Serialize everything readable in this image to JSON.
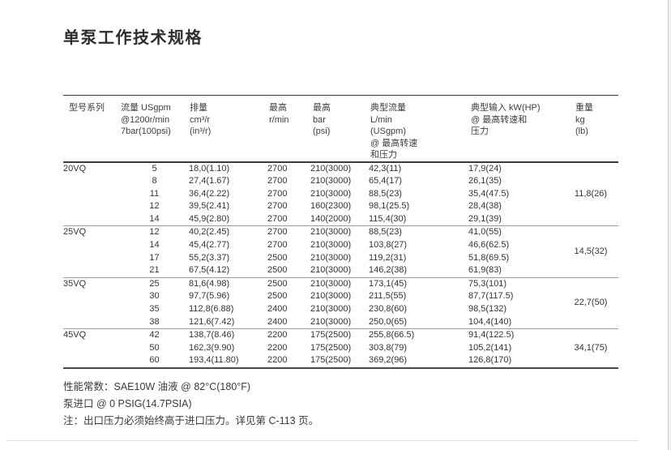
{
  "page": {
    "title": "单泵工作技术规格"
  },
  "table": {
    "headers": [
      {
        "key": "model",
        "lines": [
          "型号系列"
        ]
      },
      {
        "key": "flow",
        "lines": [
          "流量 USgpm",
          "@1200r/min",
          "7bar(100psi)"
        ]
      },
      {
        "key": "disp",
        "lines": [
          "排量",
          "cm³/r",
          "(in³/r)"
        ]
      },
      {
        "key": "rpm",
        "lines": [
          "最高",
          "r/min"
        ]
      },
      {
        "key": "bar",
        "lines": [
          "最高",
          "bar",
          "(psi)"
        ]
      },
      {
        "key": "tflow",
        "lines": [
          "典型流量",
          "L/min",
          "(USgpm)",
          "@ 最高转速",
          "和压力"
        ]
      },
      {
        "key": "tinput",
        "lines": [
          "典型输入 kW(HP)",
          "@ 最高转速和",
          "压力"
        ]
      },
      {
        "key": "weight",
        "lines": [
          "重量",
          "kg",
          "(lb)"
        ]
      }
    ],
    "sections": [
      {
        "model": "20VQ",
        "weight": "11,8(26)",
        "rows": [
          {
            "flow": "5",
            "disp": "18,0(1.10)",
            "rpm": "2700",
            "bar": "210(3000)",
            "tflow": "42,3(11)",
            "tinput": "17,9(24)"
          },
          {
            "flow": "8",
            "disp": "27,4(1.67)",
            "rpm": "2700",
            "bar": "210(3000)",
            "tflow": "65,4(17)",
            "tinput": "26,1(35)"
          },
          {
            "flow": "11",
            "disp": "36,4(2.22)",
            "rpm": "2700",
            "bar": "210(3000)",
            "tflow": "88,5(23)",
            "tinput": "35,4(47.5)"
          },
          {
            "flow": "12",
            "disp": "39,5(2.41)",
            "rpm": "2700",
            "bar": "160(2300)",
            "tflow": "98,1(25.5)",
            "tinput": "28,4(38)"
          },
          {
            "flow": "14",
            "disp": "45,9(2.80)",
            "rpm": "2700",
            "bar": "140(2000)",
            "tflow": "115,4(30)",
            "tinput": "29,1(39)"
          }
        ]
      },
      {
        "model": "25VQ",
        "weight": "14,5(32)",
        "rows": [
          {
            "flow": "12",
            "disp": "40,2(2.45)",
            "rpm": "2700",
            "bar": "210(3000)",
            "tflow": "88,5(23)",
            "tinput": "41,0(55)"
          },
          {
            "flow": "14",
            "disp": "45,4(2.77)",
            "rpm": "2700",
            "bar": "210(3000)",
            "tflow": "103,8(27)",
            "tinput": "46,6(62.5)"
          },
          {
            "flow": "17",
            "disp": "55,2(3.37)",
            "rpm": "2500",
            "bar": "210(3000)",
            "tflow": "119,2(31)",
            "tinput": "51,8(69.5)"
          },
          {
            "flow": "21",
            "disp": "67,5(4.12)",
            "rpm": "2500",
            "bar": "210(3000)",
            "tflow": "146,2(38)",
            "tinput": "61,9(83)"
          }
        ]
      },
      {
        "model": "35VQ",
        "weight": "22,7(50)",
        "rows": [
          {
            "flow": "25",
            "disp": "81,6(4.98)",
            "rpm": "2500",
            "bar": "210(3000)",
            "tflow": "173,1(45)",
            "tinput": "75,3(101)"
          },
          {
            "flow": "30",
            "disp": "97,7(5.96)",
            "rpm": "2500",
            "bar": "210(3000)",
            "tflow": "211,5(55)",
            "tinput": "87,7(117.5)"
          },
          {
            "flow": "35",
            "disp": "112,8(6.88)",
            "rpm": "2400",
            "bar": "210(3000)",
            "tflow": "230,8(60)",
            "tinput": "98,5(132)"
          },
          {
            "flow": "38",
            "disp": "121,6(7.42)",
            "rpm": "2400",
            "bar": "210(3000)",
            "tflow": "250,0(65)",
            "tinput": "104,4(140)"
          }
        ]
      },
      {
        "model": "45VQ",
        "weight": "34,1(75)",
        "rows": [
          {
            "flow": "42",
            "disp": "138,7(8.46)",
            "rpm": "2200",
            "bar": "175(2500)",
            "tflow": "255,8(66.5)",
            "tinput": "91,4(122.5)"
          },
          {
            "flow": "50",
            "disp": "162,3(9.90)",
            "rpm": "2200",
            "bar": "175(2500)",
            "tflow": "303,8(79)",
            "tinput": "105,2(141)"
          },
          {
            "flow": "60",
            "disp": "193,4(11.80)",
            "rpm": "2200",
            "bar": "175(2500)",
            "tflow": "369,2(96)",
            "tinput": "126,8(170)"
          }
        ]
      }
    ]
  },
  "notes": [
    "性能常数：SAE10W 油液 @ 82°C(180°F)",
    "泵进口 @ 0 PSIG(14.7PSIA)",
    "注：出口压力必须始终高于进口压力。详见第 C-113 页。"
  ]
}
